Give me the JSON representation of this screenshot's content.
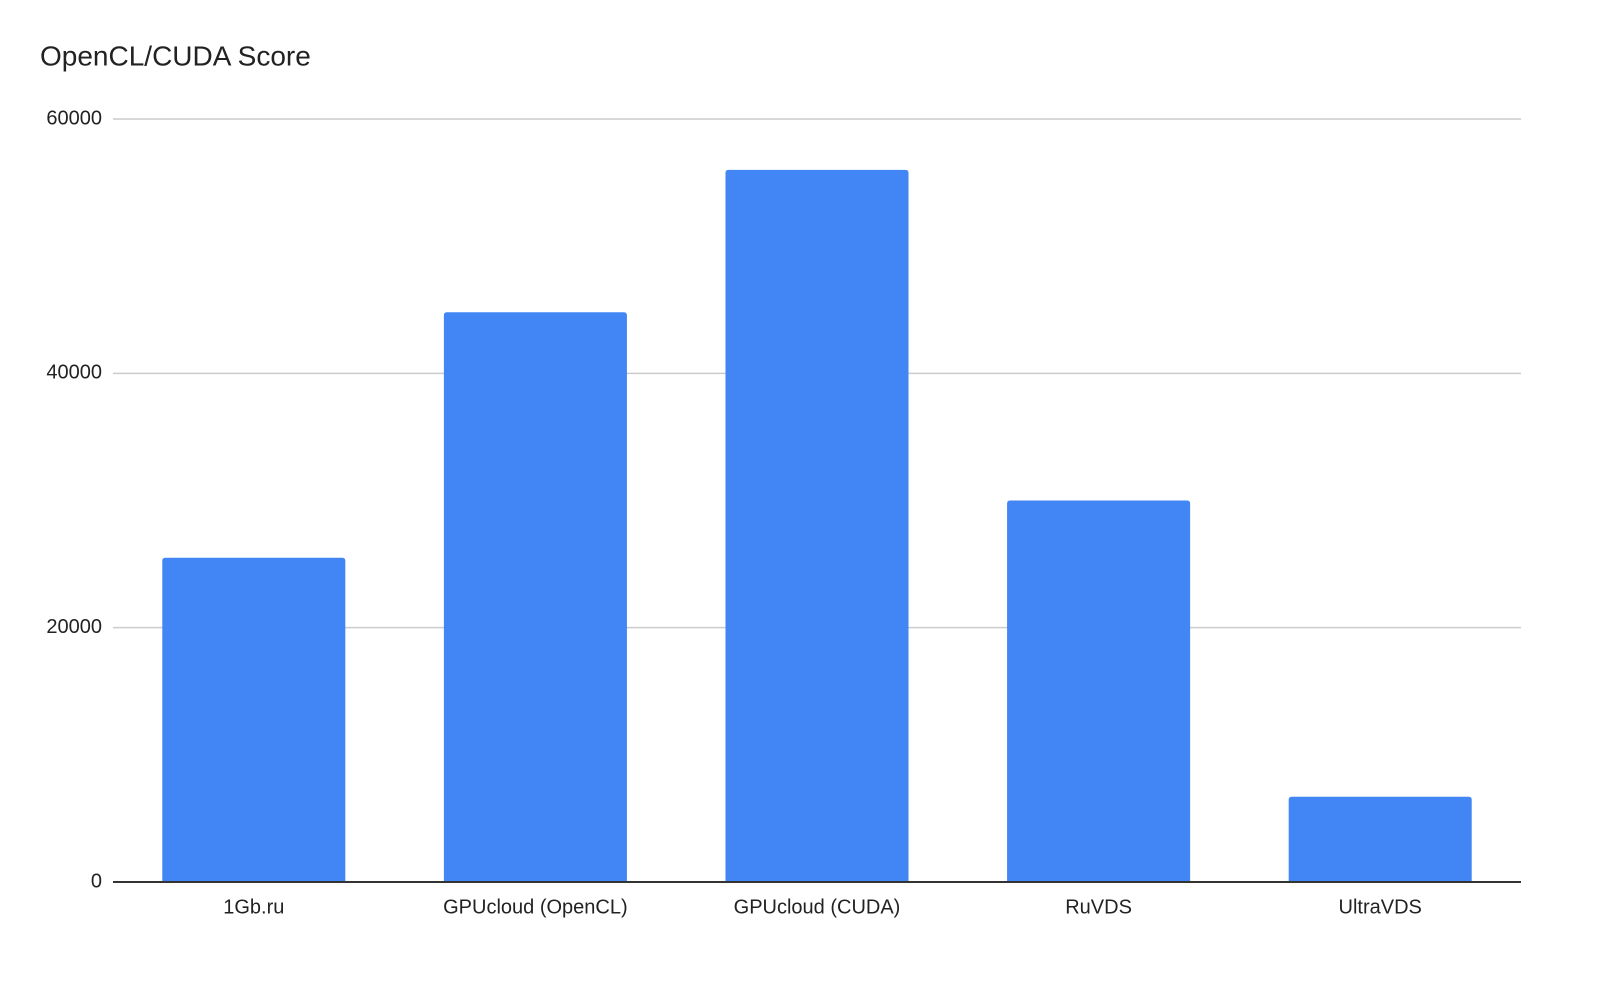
{
  "chart_data": {
    "type": "bar",
    "title": "OpenCL/CUDA Score",
    "categories": [
      "1Gb.ru",
      "GPUcloud (OpenCL)",
      "GPUcloud (CUDA)",
      "RuVDS",
      "UltraVDS"
    ],
    "values": [
      25500,
      44800,
      56000,
      30000,
      6700
    ],
    "color": "#4285f4",
    "ylim": [
      0,
      60000
    ],
    "yticks": [
      0,
      20000,
      40000,
      60000
    ],
    "grid": true
  }
}
